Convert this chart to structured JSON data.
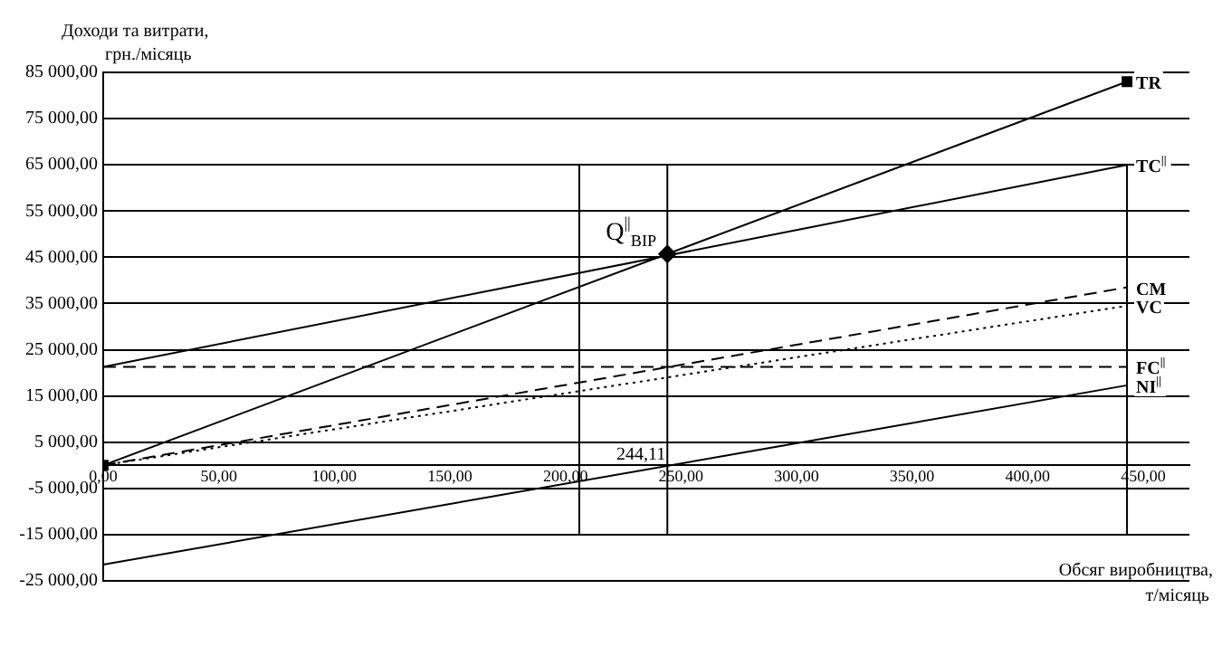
{
  "chart_data": {
    "type": "line",
    "xlabel": "Обсяг виробництва, т/місяць",
    "ylabel": "Доходи та витрати, грн./місяць",
    "xlim": [
      0,
      470
    ],
    "ylim": [
      -25000,
      85000
    ],
    "xticks": [
      {
        "value": 0,
        "label": "0,00"
      },
      {
        "value": 50,
        "label": "50,00"
      },
      {
        "value": 100,
        "label": "100,00"
      },
      {
        "value": 150,
        "label": "150,00"
      },
      {
        "value": 200,
        "label": "200,00"
      },
      {
        "value": 250,
        "label": "250,00"
      },
      {
        "value": 300,
        "label": "300,00"
      },
      {
        "value": 350,
        "label": "350,00"
      },
      {
        "value": 400,
        "label": "400,00"
      },
      {
        "value": 450,
        "label": "450,00"
      }
    ],
    "yticks": [
      {
        "value": -25000,
        "label": "-25 000,00"
      },
      {
        "value": -15000,
        "label": "-15 000,00"
      },
      {
        "value": -5000,
        "label": "-5 000,00"
      },
      {
        "value": 5000,
        "label": "5 000,00"
      },
      {
        "value": 15000,
        "label": "15 000,00"
      },
      {
        "value": 25000,
        "label": "25 000,00"
      },
      {
        "value": 35000,
        "label": "35 000,00"
      },
      {
        "value": 45000,
        "label": "45 000,00"
      },
      {
        "value": 55000,
        "label": "55 000,00"
      },
      {
        "value": 65000,
        "label": "65 000,00"
      },
      {
        "value": 75000,
        "label": "75 000,00"
      },
      {
        "value": 85000,
        "label": "85 000,00"
      }
    ],
    "grid": "y",
    "legend": false,
    "marker": "none",
    "line_style": "solid",
    "series": [
      {
        "name": "TR",
        "color": "#000000",
        "x": [
          0,
          443
        ],
        "values": [
          0,
          83000
        ],
        "marker": "square"
      },
      {
        "name": "TC$^{||}$",
        "color": "#000000",
        "x": [
          0,
          443
        ],
        "values": [
          21300,
          65000
        ]
      },
      {
        "name": "CM",
        "color": "#000000",
        "x": [
          0,
          443
        ],
        "values": [
          0,
          38500
        ],
        "line_style": "dashed"
      },
      {
        "name": "VC",
        "color": "#000000",
        "x": [
          0,
          443
        ],
        "values": [
          0,
          34500
        ],
        "line_style": "dotted"
      },
      {
        "name": "FC$^{||}$",
        "color": "#000000",
        "x": [
          0,
          443
        ],
        "values": [
          21300,
          21300
        ],
        "line_style": "dashed"
      },
      {
        "name": "NI$^{||}$",
        "color": "#000000",
        "x": [
          0,
          443
        ],
        "values": [
          -21500,
          17300
        ]
      },
      {
        "color": "#000000",
        "x": [
          206,
          206
        ],
        "values": [
          -15000,
          65000
        ]
      },
      {
        "color": "#000000",
        "x": [
          244.11,
          244.11
        ],
        "values": [
          -15000,
          65000
        ]
      },
      {
        "color": "#000000",
        "x": [
          443,
          443
        ],
        "values": [
          -15000,
          65000
        ]
      },
      {
        "type": "scatter",
        "color": "#000000",
        "x": [
          244.11
        ],
        "values": [
          45700
        ],
        "marker": "diamond"
      }
    ],
    "annotations": [
      {
        "text": "Q$^{||}$$_{BIP}$",
        "x": 244.11,
        "y": 45700
      },
      {
        "text": "244,11",
        "x": 244.11,
        "y": 0
      }
    ]
  }
}
